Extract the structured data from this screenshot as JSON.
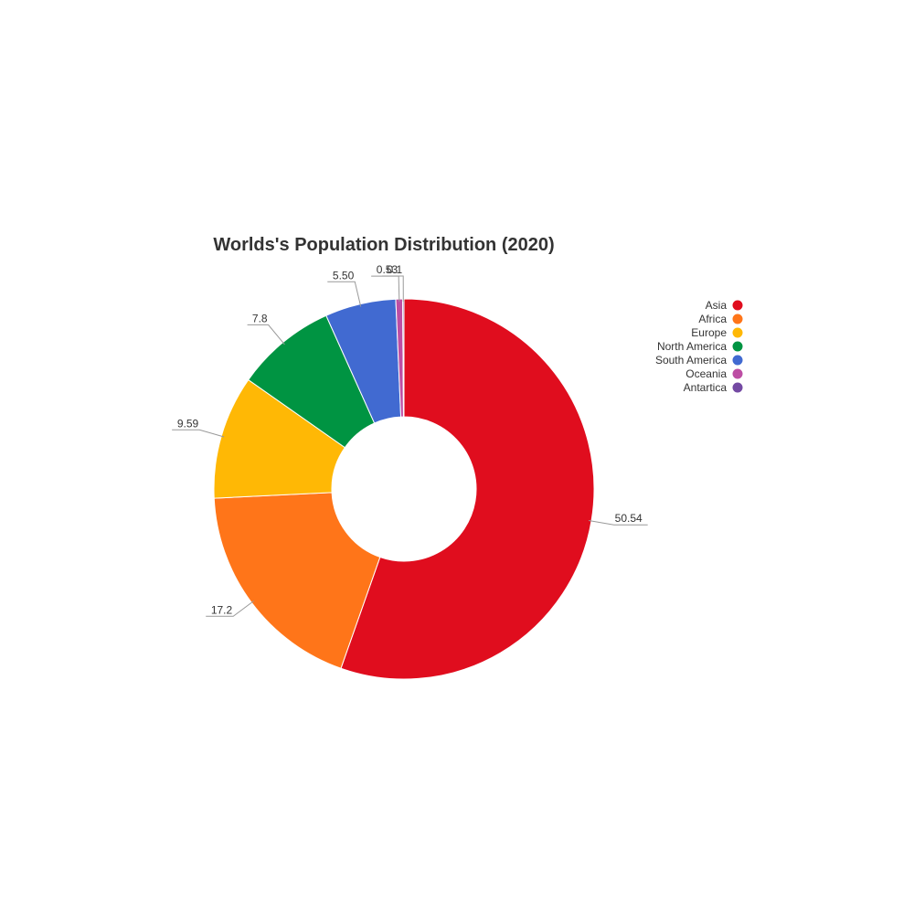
{
  "chart_data": {
    "type": "pie",
    "variant": "donut",
    "title": "Worlds's Population Distribution (2020)",
    "categories": [
      "Asia",
      "Africa",
      "Europe",
      "North America",
      "South America",
      "Oceania",
      "Antartica"
    ],
    "values": [
      50.54,
      17.2,
      9.59,
      7.8,
      5.5,
      0.53,
      0.1
    ],
    "labels": [
      "50.54",
      "17.2",
      "9.59",
      "7.8",
      "5.50",
      "0.53",
      "0.1"
    ],
    "colors": [
      "#e00d1e",
      "#ff7519",
      "#ffb805",
      "#009442",
      "#416ad1",
      "#bd4ea4",
      "#744aa3"
    ],
    "legend": "right",
    "slice_border_color": "#ffffff"
  }
}
